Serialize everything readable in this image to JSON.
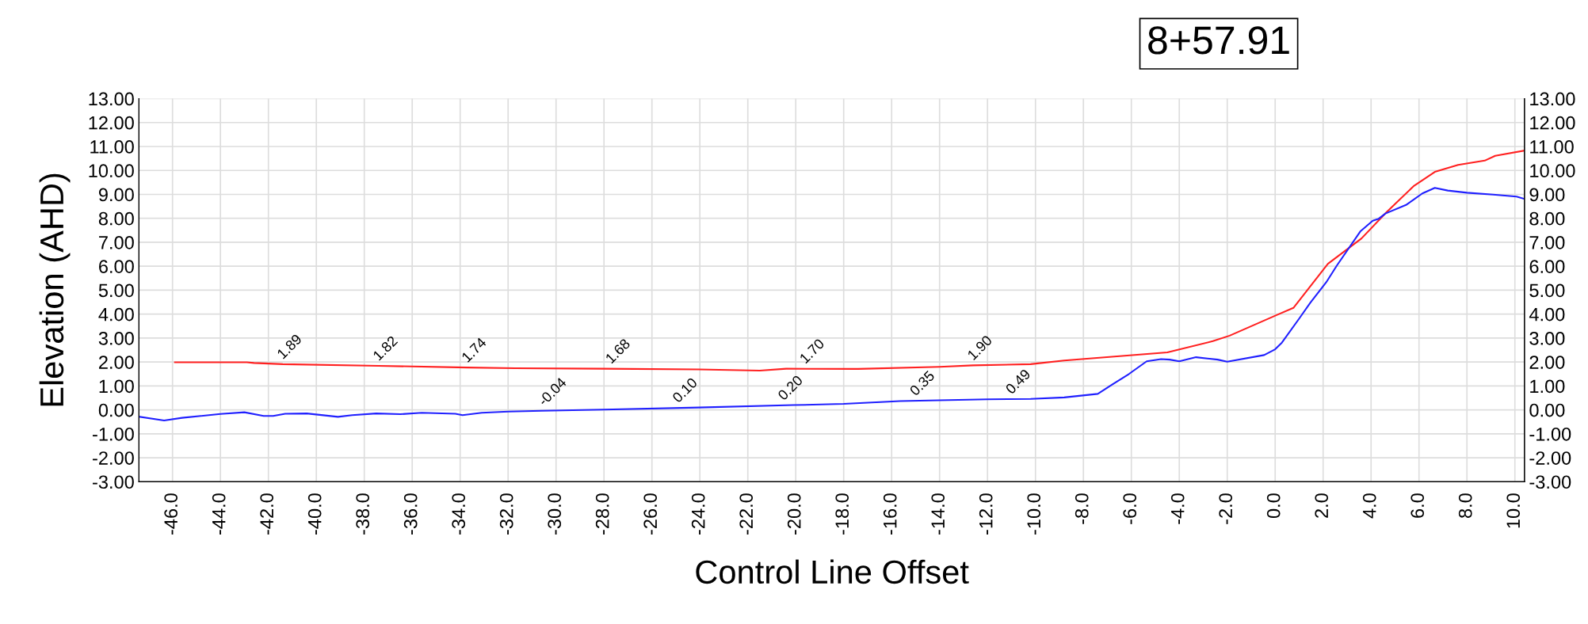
{
  "chart_data": {
    "type": "line",
    "title": "8+57.91",
    "xlabel": "Control Line Offset",
    "ylabel": "Elevation (AHD)",
    "xlim": [
      -47.4,
      10.4
    ],
    "ylim": [
      -3,
      13
    ],
    "y2lim": [
      -3,
      13
    ],
    "xticks": [
      {
        "value": -46,
        "label": "-46.0"
      },
      {
        "value": -44,
        "label": "-44.0"
      },
      {
        "value": -42,
        "label": "-42.0"
      },
      {
        "value": -40,
        "label": "-40.0"
      },
      {
        "value": -38,
        "label": "-38.0"
      },
      {
        "value": -36,
        "label": "-36.0"
      },
      {
        "value": -34,
        "label": "-34.0"
      },
      {
        "value": -32,
        "label": "-32.0"
      },
      {
        "value": -30,
        "label": "-30.0"
      },
      {
        "value": -28,
        "label": "-28.0"
      },
      {
        "value": -26,
        "label": "-26.0"
      },
      {
        "value": -24,
        "label": "-24.0"
      },
      {
        "value": -22,
        "label": "-22.0"
      },
      {
        "value": -20,
        "label": "-20.0"
      },
      {
        "value": -18,
        "label": "-18.0"
      },
      {
        "value": -16,
        "label": "-16.0"
      },
      {
        "value": -14,
        "label": "-14.0"
      },
      {
        "value": -12,
        "label": "-12.0"
      },
      {
        "value": -10,
        "label": "-10.0"
      },
      {
        "value": -8,
        "label": "-8.0"
      },
      {
        "value": -6,
        "label": "-6.0"
      },
      {
        "value": -4,
        "label": "-4.0"
      },
      {
        "value": -2,
        "label": "-2.0"
      },
      {
        "value": 0,
        "label": "0.0"
      },
      {
        "value": 2,
        "label": "2.0"
      },
      {
        "value": 4,
        "label": "4.0"
      },
      {
        "value": 6,
        "label": "6.0"
      },
      {
        "value": 8,
        "label": "8.0"
      },
      {
        "value": 10,
        "label": "10.0"
      }
    ],
    "yticks": [
      {
        "value": -3,
        "label": "-3.00"
      },
      {
        "value": -2,
        "label": "-2.00"
      },
      {
        "value": -1,
        "label": "-1.00"
      },
      {
        "value": 0,
        "label": "0.00"
      },
      {
        "value": 1,
        "label": "1.00"
      },
      {
        "value": 2,
        "label": "2.00"
      },
      {
        "value": 3,
        "label": "3.00"
      },
      {
        "value": 4,
        "label": "4.00"
      },
      {
        "value": 5,
        "label": "5.00"
      },
      {
        "value": 6,
        "label": "6.00"
      },
      {
        "value": 7,
        "label": "7.00"
      },
      {
        "value": 8,
        "label": "8.00"
      },
      {
        "value": 9,
        "label": "9.00"
      },
      {
        "value": 10,
        "label": "10.00"
      },
      {
        "value": 11,
        "label": "11.00"
      },
      {
        "value": 12,
        "label": "12.00"
      },
      {
        "value": 13,
        "label": "13.00"
      }
    ],
    "y2ticks": [
      {
        "value": -3,
        "label": "-3.00"
      },
      {
        "value": -2,
        "label": "-2.00"
      },
      {
        "value": -1,
        "label": "-1.00"
      },
      {
        "value": 0,
        "label": "0.00"
      },
      {
        "value": 1,
        "label": "1.00"
      },
      {
        "value": 2,
        "label": "2.00"
      },
      {
        "value": 3,
        "label": "3.00"
      },
      {
        "value": 4,
        "label": "4.00"
      },
      {
        "value": 5,
        "label": "5.00"
      },
      {
        "value": 6,
        "label": "6.00"
      },
      {
        "value": 7,
        "label": "7.00"
      },
      {
        "value": 8,
        "label": "8.00"
      },
      {
        "value": 9,
        "label": "9.00"
      },
      {
        "value": 10,
        "label": "10.00"
      },
      {
        "value": 11,
        "label": "11.00"
      },
      {
        "value": 12,
        "label": "12.00"
      },
      {
        "value": 13,
        "label": "13.00"
      }
    ],
    "grid": true,
    "marker": "none",
    "line_style": "solid",
    "series": [
      {
        "color": "#ff2020",
        "x": [
          -45.9,
          -42.9,
          -42.6,
          -41.4,
          -37.4,
          -33.7,
          -31.7,
          -28.0,
          -24.05,
          -21.5,
          -20.4,
          -17.4,
          -14.0,
          -12.6,
          -10.2,
          -8.8,
          -4.5,
          -2.6,
          -1.9,
          0.06,
          0.76,
          2.2,
          3.6,
          4.66,
          5.77,
          6.66,
          7.63,
          8.74,
          9.18,
          10.4
        ],
        "values": [
          1.99,
          1.99,
          1.96,
          1.91,
          1.84,
          1.77,
          1.74,
          1.72,
          1.69,
          1.64,
          1.72,
          1.71,
          1.8,
          1.86,
          1.91,
          2.06,
          2.4,
          2.87,
          3.1,
          3.96,
          4.26,
          6.1,
          7.16,
          8.27,
          9.34,
          9.94,
          10.23,
          10.41,
          10.61,
          10.83
        ]
      },
      {
        "color": "#2020ff",
        "x": [
          -47.37,
          -46.35,
          -45.6,
          -44.0,
          -43.0,
          -42.2,
          -41.8,
          -41.3,
          -40.4,
          -39.1,
          -38.5,
          -37.5,
          -36.5,
          -35.6,
          -34.2,
          -33.9,
          -33.1,
          -32.0,
          -30.6,
          -28.0,
          -24.05,
          -20.1,
          -18.0,
          -15.65,
          -12.0,
          -10.2,
          -8.8,
          -7.4,
          -6.8,
          -6.1,
          -5.36,
          -4.76,
          -4.4,
          -4.0,
          -3.3,
          -2.4,
          -2.0,
          -0.46,
          0.0,
          0.28,
          1.02,
          1.47,
          2.13,
          2.58,
          3.55,
          4.07,
          4.3,
          4.6,
          5.48,
          6.14,
          6.66,
          7.2,
          8.0,
          9.1,
          10.07,
          10.4
        ],
        "values": [
          -0.29,
          -0.44,
          -0.33,
          -0.17,
          -0.1,
          -0.25,
          -0.25,
          -0.16,
          -0.15,
          -0.29,
          -0.22,
          -0.15,
          -0.18,
          -0.12,
          -0.16,
          -0.22,
          -0.12,
          -0.07,
          -0.04,
          0.01,
          0.1,
          0.2,
          0.25,
          0.37,
          0.44,
          0.46,
          0.52,
          0.67,
          1.06,
          1.5,
          2.03,
          2.12,
          2.1,
          2.03,
          2.2,
          2.1,
          2.01,
          2.29,
          2.53,
          2.81,
          3.84,
          4.48,
          5.33,
          6.04,
          7.45,
          7.9,
          7.97,
          8.2,
          8.57,
          9.04,
          9.27,
          9.16,
          9.07,
          8.99,
          8.91,
          8.81
        ]
      }
    ],
    "annotations": [
      {
        "text": "1.89",
        "x": -41.4,
        "y": 1.91
      },
      {
        "text": "1.82",
        "x": -37.4,
        "y": 1.84
      },
      {
        "text": "1.74",
        "x": -33.7,
        "y": 1.77
      },
      {
        "text": "1.68",
        "x": -27.7,
        "y": 1.72
      },
      {
        "text": "1.70",
        "x": -19.6,
        "y": 1.72
      },
      {
        "text": "1.90",
        "x": -12.6,
        "y": 1.86
      },
      {
        "text": "-0.04",
        "x": -30.5,
        "y": -0.04
      },
      {
        "text": "0.10",
        "x": -24.9,
        "y": 0.09
      },
      {
        "text": "0.20",
        "x": -20.5,
        "y": 0.19
      },
      {
        "text": "0.35",
        "x": -15.0,
        "y": 0.38
      },
      {
        "text": "0.49",
        "x": -11.0,
        "y": 0.45
      }
    ]
  }
}
